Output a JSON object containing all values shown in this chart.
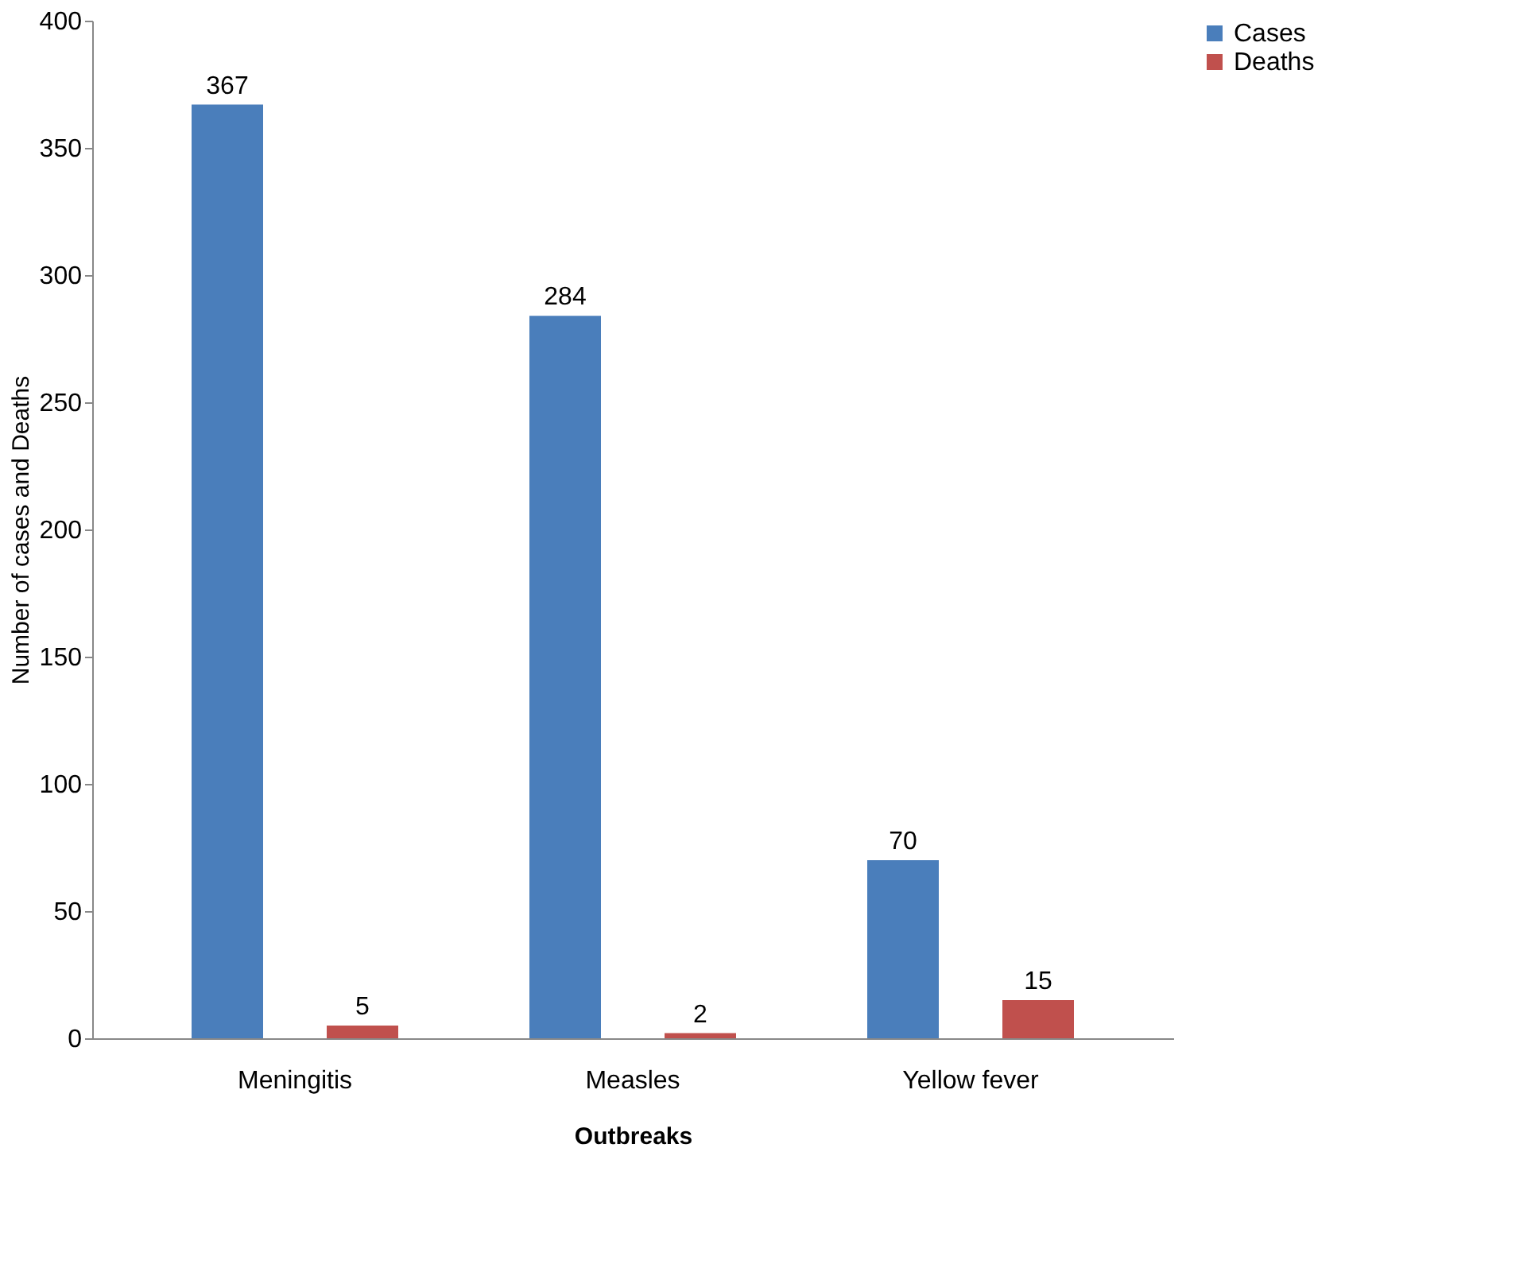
{
  "chart_data": {
    "type": "bar",
    "xlabel": "Outbreaks",
    "ylabel": "Number of cases and Deaths",
    "categories": [
      "Meningitis",
      "Measles",
      "Yellow fever"
    ],
    "series": [
      {
        "name": "Cases",
        "color": "#4a7ebb",
        "values": [
          367,
          284,
          70
        ]
      },
      {
        "name": "Deaths",
        "color": "#c0504d",
        "values": [
          5,
          2,
          15
        ]
      }
    ],
    "ylim": [
      0,
      400
    ],
    "yticks": [
      0,
      50,
      100,
      150,
      200,
      250,
      300,
      350,
      400
    ],
    "grid": false,
    "legend": "right",
    "data_labels": true
  }
}
